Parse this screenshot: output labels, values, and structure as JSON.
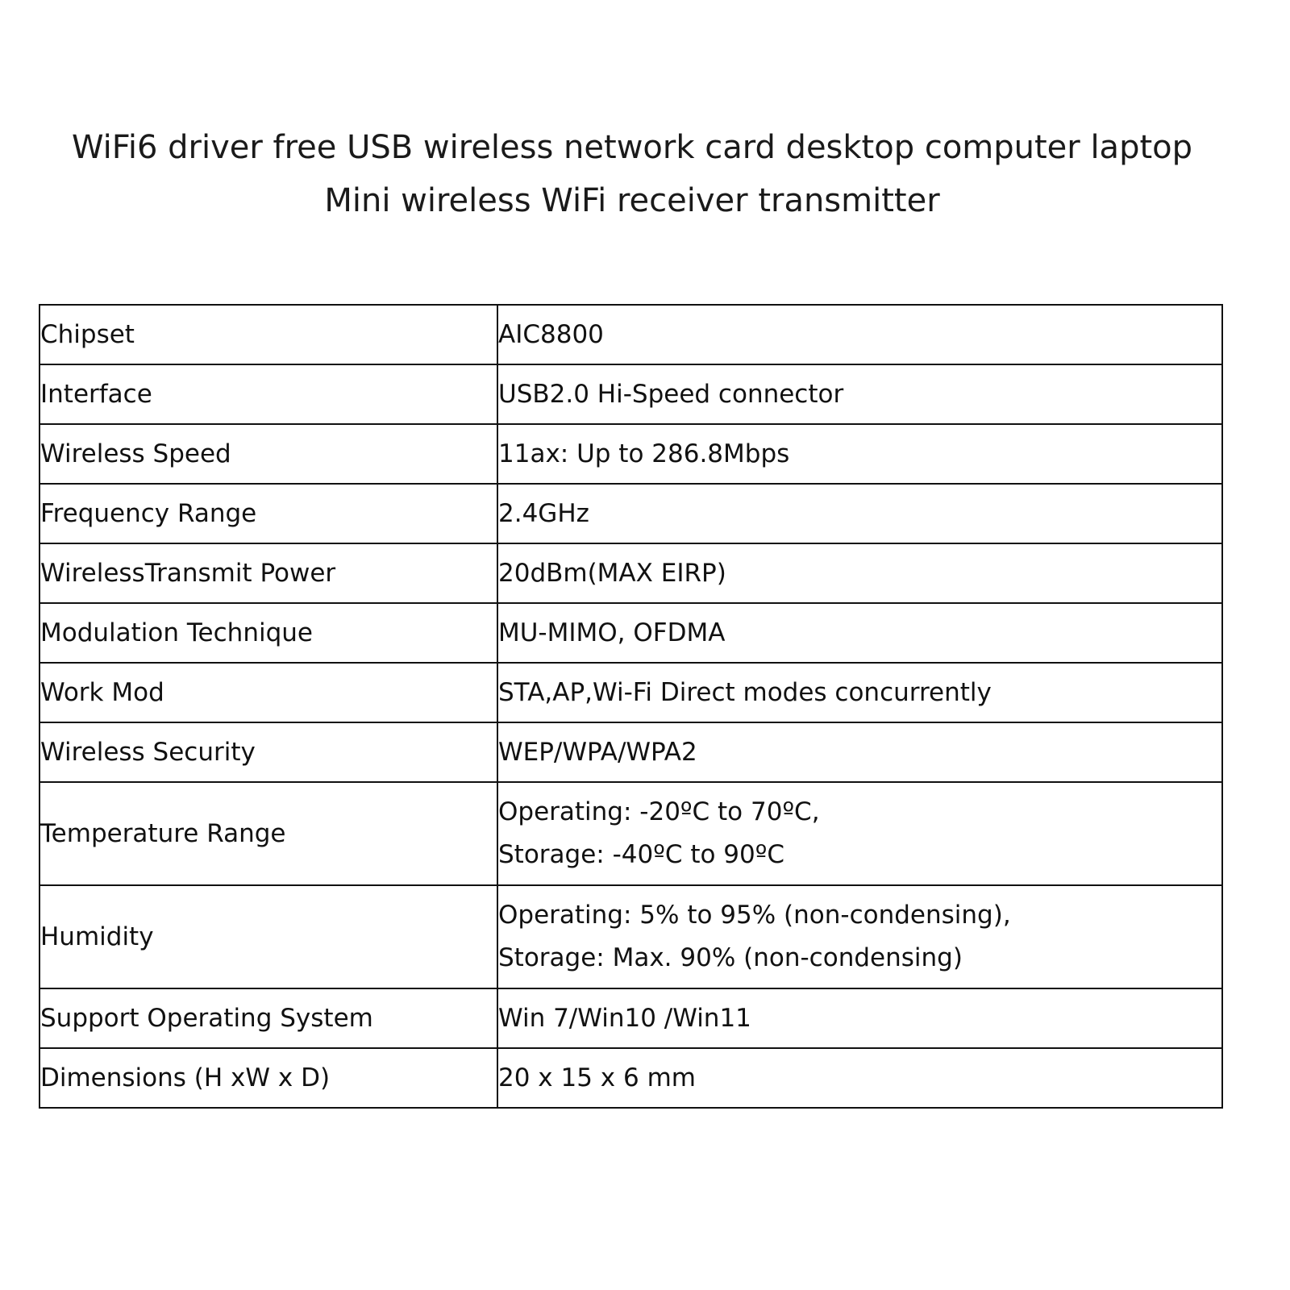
{
  "title": {
    "line1": "WiFi6 driver free USB wireless network card desktop computer laptop",
    "line2": "Mini wireless WiFi receiver transmitter"
  },
  "specs": [
    {
      "label": "Chipset",
      "value": [
        "AIC8800"
      ]
    },
    {
      "label": "Interface",
      "value": [
        "USB2.0 Hi-Speed connector"
      ]
    },
    {
      "label": "Wireless Speed",
      "value": [
        "11ax: Up to 286.8Mbps"
      ]
    },
    {
      "label": "Frequency Range",
      "value": [
        "2.4GHz"
      ]
    },
    {
      "label": "WirelessTransmit Power",
      "value": [
        "20dBm(MAX EIRP)"
      ]
    },
    {
      "label": "Modulation Technique",
      "value": [
        "MU-MIMO, OFDMA"
      ]
    },
    {
      "label": "Work Mod",
      "value": [
        "STA,AP,Wi-Fi Direct modes concurrently"
      ]
    },
    {
      "label": "Wireless Security",
      "value": [
        "WEP/WPA/WPA2"
      ]
    },
    {
      "label": "Temperature Range",
      "value": [
        "Operating: -20ºC to 70ºC,",
        "Storage: -40ºC to 90ºC"
      ]
    },
    {
      "label": "Humidity",
      "value": [
        "Operating: 5% to 95% (non-condensing),",
        "Storage: Max. 90% (non-condensing)"
      ]
    },
    {
      "label": "Support Operating System",
      "value": [
        "Win 7/Win10 /Win11"
      ]
    },
    {
      "label": "Dimensions (H xW x D)",
      "value": [
        "20 x 15 x 6 mm"
      ]
    }
  ]
}
